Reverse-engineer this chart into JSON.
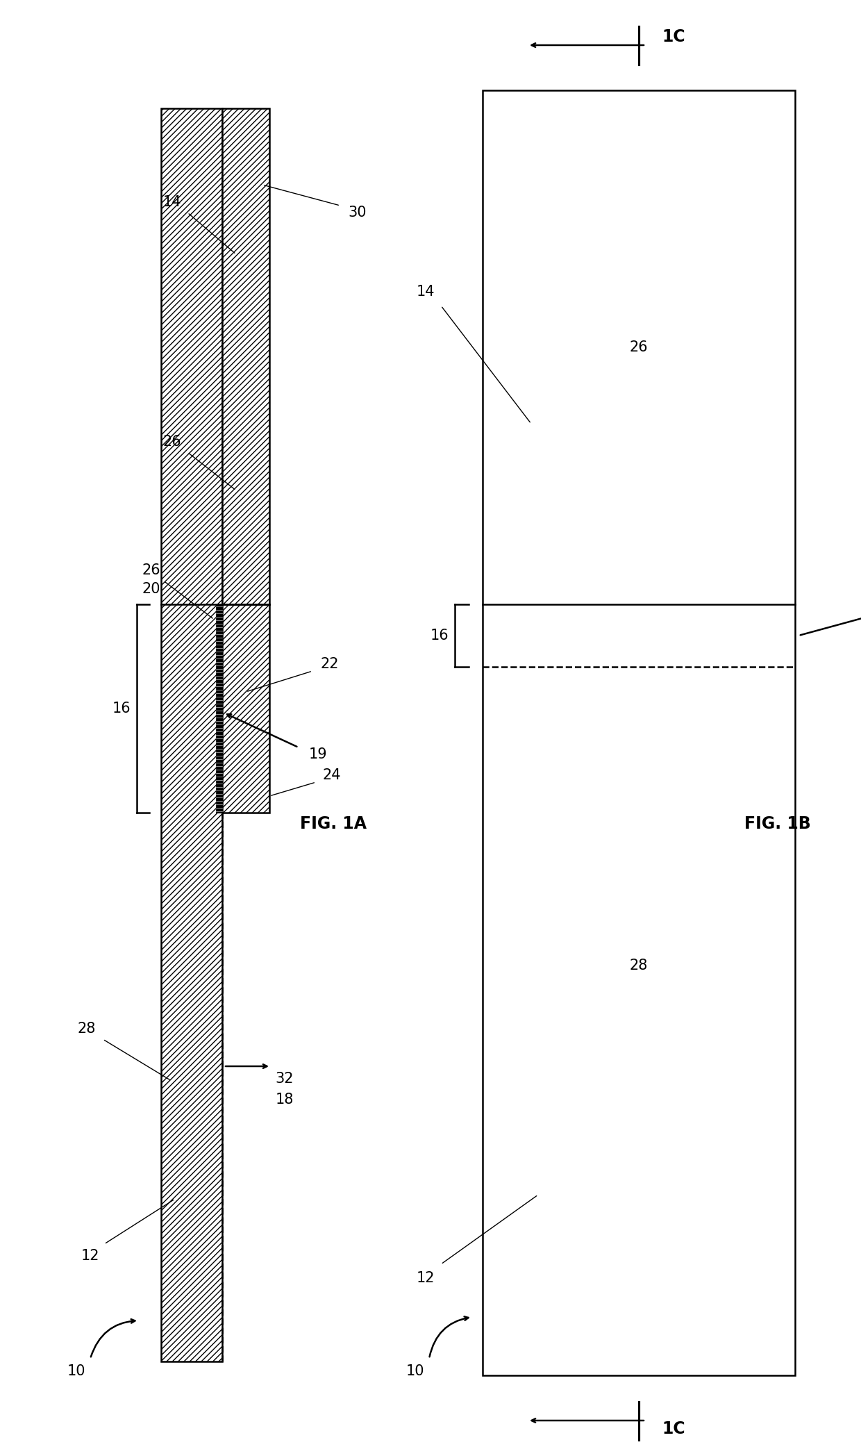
{
  "bg_color": "#ffffff",
  "line_color": "#000000",
  "fig_label_1A": "FIG. 1A",
  "fig_label_1B": "FIG. 1B",
  "ref_10": "10",
  "ref_12": "12",
  "ref_14": "14",
  "ref_16": "16",
  "ref_18": "18",
  "ref_19": "19",
  "ref_20": "20",
  "ref_22": "22",
  "ref_24": "24",
  "ref_26": "26",
  "ref_28": "28",
  "ref_30": "30",
  "ref_32": "32",
  "ref_1C": "1C",
  "fontsize_label": 15,
  "fontsize_fig": 17,
  "lw": 1.8
}
